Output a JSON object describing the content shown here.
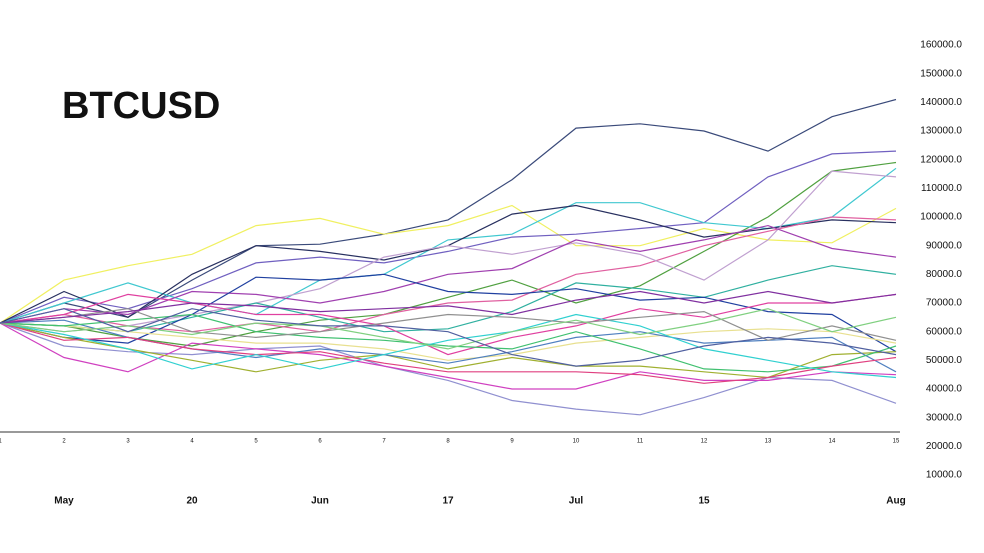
{
  "chart_data": {
    "type": "line",
    "title": "BTCUSD",
    "x": [
      1,
      2,
      3,
      4,
      5,
      6,
      7,
      8,
      9,
      10,
      11,
      12,
      13,
      14,
      15
    ],
    "xlim": [
      1,
      15
    ],
    "xticks": [
      1,
      2,
      3,
      4,
      5,
      6,
      7,
      8,
      9,
      10,
      11,
      12,
      13,
      14,
      15
    ],
    "secondary_xticks": [
      {
        "value": 2,
        "label": "May"
      },
      {
        "value": 4,
        "label": "20"
      },
      {
        "value": 6,
        "label": "Jun"
      },
      {
        "value": 8,
        "label": "17"
      },
      {
        "value": 10,
        "label": "Jul"
      },
      {
        "value": 12,
        "label": "15"
      },
      {
        "value": 15,
        "label": "Aug"
      }
    ],
    "ylim": [
      10000,
      160000
    ],
    "yticks": [
      {
        "value": 160000,
        "label": "160000.0"
      },
      {
        "value": 150000,
        "label": "150000.0"
      },
      {
        "value": 140000,
        "label": "140000.0"
      },
      {
        "value": 130000,
        "label": "130000.0"
      },
      {
        "value": 120000,
        "label": "120000.0"
      },
      {
        "value": 110000,
        "label": "110000.0"
      },
      {
        "value": 100000,
        "label": "100000.0"
      },
      {
        "value": 90000,
        "label": "90000.0"
      },
      {
        "value": 80000,
        "label": "80000.0"
      },
      {
        "value": 70000,
        "label": "70000.0"
      },
      {
        "value": 60000,
        "label": "60000.0"
      },
      {
        "value": 50000,
        "label": "50000.0"
      },
      {
        "value": 40000,
        "label": "40000.0"
      },
      {
        "value": 30000,
        "label": "30000.0"
      },
      {
        "value": 20000,
        "label": "20000.0"
      },
      {
        "value": 10000,
        "label": "10000.0"
      }
    ],
    "series": [
      {
        "color": "#3a4a7a",
        "values": [
          63000,
          70000,
          65000,
          78000,
          90000,
          90500,
          94000,
          99000,
          113000,
          131000,
          132500,
          130000,
          123000,
          135000,
          141000
        ]
      },
      {
        "color": "#f0f060",
        "values": [
          63000,
          78000,
          83000,
          87000,
          97000,
          99500,
          94000,
          97000,
          104000,
          90000,
          90000,
          96000,
          92000,
          91000,
          103000
        ]
      },
      {
        "color": "#7060c0",
        "values": [
          63000,
          72000,
          68000,
          75000,
          84000,
          86000,
          84000,
          88000,
          93000,
          94000,
          96000,
          98000,
          114000,
          122000,
          123000
        ]
      },
      {
        "color": "#50a040",
        "values": [
          63000,
          62000,
          58000,
          55000,
          60000,
          64000,
          66000,
          72000,
          78000,
          70000,
          76000,
          88000,
          100000,
          116000,
          119000
        ]
      },
      {
        "color": "#40c8d0",
        "values": [
          63000,
          70000,
          77000,
          70000,
          66000,
          78000,
          80000,
          92000,
          94000,
          105000,
          105000,
          98000,
          96000,
          100000,
          117000
        ]
      },
      {
        "color": "#283060",
        "values": [
          63000,
          74000,
          65000,
          80000,
          90000,
          88000,
          85000,
          90000,
          101000,
          104000,
          99000,
          93000,
          96000,
          99000,
          98000
        ]
      },
      {
        "color": "#e060a0",
        "values": [
          63000,
          66000,
          62000,
          60000,
          63000,
          60000,
          66000,
          70000,
          71000,
          80000,
          83000,
          90000,
          95000,
          100000,
          99000
        ]
      },
      {
        "color": "#c0a0d0",
        "values": [
          63000,
          60000,
          62000,
          66000,
          70000,
          75000,
          86000,
          90000,
          87000,
          91000,
          87000,
          78000,
          92000,
          116000,
          114000
        ]
      },
      {
        "color": "#a040b0",
        "values": [
          63000,
          68000,
          66000,
          74000,
          73000,
          70000,
          74000,
          80000,
          82000,
          92000,
          88000,
          92000,
          97000,
          89000,
          86000
        ]
      },
      {
        "color": "#30b0a0",
        "values": [
          63000,
          62000,
          60000,
          65000,
          70000,
          65000,
          60000,
          61000,
          67000,
          77000,
          75000,
          72000,
          78000,
          83000,
          80000
        ]
      },
      {
        "color": "#2040a0",
        "values": [
          63000,
          58000,
          56000,
          66000,
          79000,
          78000,
          80000,
          74000,
          73000,
          75000,
          71000,
          72000,
          67000,
          66000,
          53000
        ]
      },
      {
        "color": "#e040a0",
        "values": [
          63000,
          66000,
          73000,
          70000,
          66000,
          66000,
          62000,
          52000,
          58000,
          62000,
          68000,
          65000,
          70000,
          70000,
          73000
        ]
      },
      {
        "color": "#9090d0",
        "values": [
          63000,
          55000,
          53000,
          52000,
          54000,
          55000,
          48000,
          43000,
          36000,
          33000,
          31000,
          37000,
          44000,
          43000,
          35000
        ]
      },
      {
        "color": "#d040c0",
        "values": [
          63000,
          51000,
          46000,
          56000,
          54000,
          52000,
          48000,
          44000,
          40000,
          40000,
          46000,
          43000,
          43000,
          46000,
          45000
        ]
      },
      {
        "color": "#a0b030",
        "values": [
          63000,
          58000,
          54000,
          50000,
          46000,
          50000,
          52000,
          47000,
          51000,
          48000,
          48000,
          46000,
          44000,
          52000,
          53000
        ]
      },
      {
        "color": "#e8e090",
        "values": [
          63000,
          62000,
          60000,
          58000,
          56000,
          56000,
          54000,
          50000,
          52000,
          56000,
          58000,
          60000,
          61000,
          60000,
          56000
        ]
      },
      {
        "color": "#5080c0",
        "values": [
          63000,
          64000,
          58000,
          54000,
          51000,
          54000,
          52000,
          49000,
          53000,
          58000,
          60000,
          56000,
          57000,
          58000,
          46000
        ]
      },
      {
        "color": "#40c070",
        "values": [
          63000,
          62000,
          64000,
          66000,
          60000,
          58000,
          57000,
          55000,
          54000,
          60000,
          54000,
          47000,
          46000,
          48000,
          55000
        ]
      },
      {
        "color": "#e04080",
        "values": [
          63000,
          57000,
          58000,
          54000,
          52000,
          53000,
          49000,
          46000,
          46000,
          46000,
          45000,
          42000,
          44000,
          48000,
          51000
        ]
      },
      {
        "color": "#30d0d0",
        "values": [
          63000,
          59000,
          54000,
          47000,
          52000,
          47000,
          52000,
          57000,
          60000,
          66000,
          62000,
          54000,
          50000,
          46000,
          44000
        ]
      },
      {
        "color": "#909090",
        "values": [
          63000,
          65000,
          68000,
          60000,
          58000,
          60000,
          63000,
          66000,
          65000,
          63000,
          65000,
          67000,
          57000,
          62000,
          57000
        ]
      },
      {
        "color": "#80d080",
        "values": [
          63000,
          60000,
          62000,
          59000,
          63000,
          62000,
          58000,
          54000,
          60000,
          64000,
          59000,
          63000,
          68000,
          60000,
          65000
        ]
      },
      {
        "color": "#8030a0",
        "values": [
          63000,
          65000,
          67000,
          70000,
          69000,
          67000,
          68000,
          69000,
          66000,
          71000,
          74000,
          70000,
          74000,
          70000,
          73000
        ]
      },
      {
        "color": "#5060a0",
        "values": [
          63000,
          68000,
          60000,
          68000,
          64000,
          62000,
          62000,
          60000,
          52000,
          48000,
          50000,
          55000,
          58000,
          56000,
          52000
        ]
      }
    ]
  }
}
